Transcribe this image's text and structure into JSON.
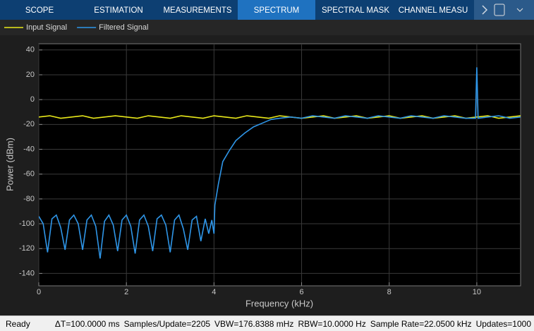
{
  "toolbar": {
    "tabs": [
      "SCOPE",
      "ESTIMATION",
      "MEASUREMENTS",
      "SPECTRUM",
      "SPECTRAL MASK",
      "CHANNEL MEASU"
    ]
  },
  "status_bar": {
    "state": "Ready",
    "items": [
      "ΔT=100.0000 ms",
      "Samples/Update=2205",
      "VBW=176.8388 mHz",
      "RBW=10.0000 Hz",
      "Sample Rate=22.0500 kHz",
      "Updates=1000"
    ]
  },
  "chart_data": {
    "type": "line",
    "xlabel": "Frequency (kHz)",
    "ylabel": "Power (dBm)",
    "xlim": [
      0,
      11
    ],
    "ylim": [
      -150,
      45
    ],
    "xticks": [
      0,
      2,
      4,
      6,
      8,
      10
    ],
    "yticks": [
      40,
      20,
      0,
      -20,
      -40,
      -60,
      -80,
      -100,
      -120,
      -140
    ],
    "grid": true,
    "series": [
      {
        "name": "Input Signal",
        "color": "#e8e81a",
        "x": [
          0,
          0.25,
          0.5,
          0.75,
          1,
          1.25,
          1.5,
          1.75,
          2,
          2.25,
          2.5,
          2.75,
          3,
          3.25,
          3.5,
          3.75,
          4,
          4.25,
          4.5,
          4.75,
          5,
          5.25,
          5.5,
          5.75,
          6,
          6.25,
          6.5,
          6.75,
          7,
          7.25,
          7.5,
          7.75,
          8,
          8.25,
          8.5,
          8.75,
          9,
          9.25,
          9.5,
          9.75,
          10,
          10.25,
          10.5,
          10.75,
          11
        ],
        "values": [
          -14,
          -13,
          -15,
          -14,
          -13,
          -15,
          -14,
          -13,
          -14,
          -15,
          -13,
          -14,
          -15,
          -13,
          -14,
          -15,
          -13,
          -14,
          -15,
          -13,
          -14,
          -15,
          -13,
          -14,
          -15,
          -14,
          -13,
          -15,
          -14,
          -13,
          -15,
          -14,
          -13,
          -15,
          -14,
          -13,
          -15,
          -14,
          -13,
          -15,
          -14,
          -13,
          -15,
          -14,
          -13
        ]
      },
      {
        "name": "Filtered Signal",
        "color": "#2f96e8",
        "x": [
          0,
          0.1,
          0.2,
          0.3,
          0.4,
          0.5,
          0.6,
          0.7,
          0.8,
          0.9,
          1,
          1.1,
          1.2,
          1.3,
          1.4,
          1.5,
          1.6,
          1.7,
          1.8,
          1.9,
          2,
          2.1,
          2.2,
          2.3,
          2.4,
          2.5,
          2.6,
          2.7,
          2.8,
          2.9,
          3,
          3.1,
          3.2,
          3.3,
          3.4,
          3.5,
          3.6,
          3.7,
          3.8,
          3.88,
          3.95,
          4,
          4.02,
          4.1,
          4.2,
          4.35,
          4.5,
          4.7,
          4.9,
          5.1,
          5.3,
          5.5,
          5.75,
          6,
          6.25,
          6.5,
          6.75,
          7,
          7.25,
          7.5,
          7.75,
          8,
          8.25,
          8.5,
          8.75,
          9,
          9.25,
          9.5,
          9.75,
          9.97,
          10,
          10.03,
          10.25,
          10.5,
          10.75,
          11
        ],
        "values": [
          -94,
          -100,
          -123,
          -96,
          -93,
          -103,
          -121,
          -97,
          -93,
          -100,
          -121,
          -97,
          -93,
          -102,
          -128,
          -98,
          -93,
          -101,
          -122,
          -97,
          -93,
          -102,
          -124,
          -97,
          -93,
          -102,
          -122,
          -96,
          -93,
          -101,
          -123,
          -97,
          -93,
          -104,
          -121,
          -97,
          -94,
          -114,
          -96,
          -108,
          -97,
          -108,
          -85,
          -68,
          -50,
          -41,
          -33,
          -27,
          -22,
          -19,
          -16,
          -15,
          -14,
          -15,
          -13,
          -14,
          -15,
          -13,
          -14,
          -15,
          -13,
          -14,
          -15,
          -13,
          -14,
          -15,
          -13,
          -14,
          -15,
          -15,
          26,
          -15,
          -14,
          -13,
          -15,
          -14
        ]
      }
    ]
  }
}
